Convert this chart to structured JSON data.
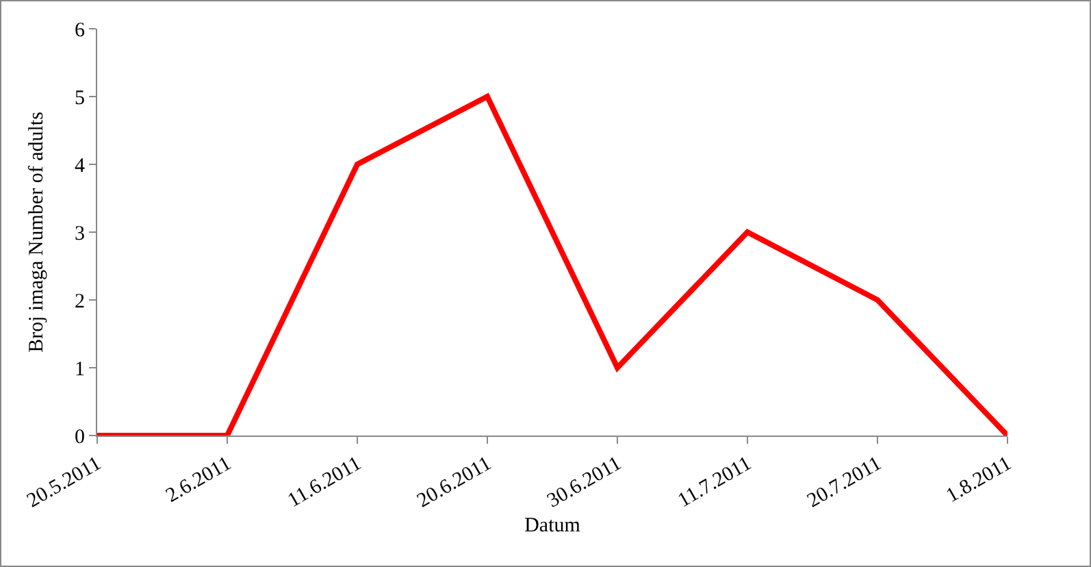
{
  "chart_data": {
    "type": "line",
    "xlabel": "Datum",
    "ylabel": "Broj imaga Number of adults",
    "categories": [
      "20.5.2011",
      "2.6.2011",
      "11.6.2011",
      "20.6.2011",
      "30.6.2011",
      "11.7.2011",
      "20.7.2011",
      "1.8.2011"
    ],
    "series": [
      {
        "color": "#ff0000",
        "values": [
          0,
          0,
          4,
          5,
          1,
          3,
          2,
          0
        ]
      }
    ],
    "ylim": [
      0,
      6
    ],
    "yticks": [
      0,
      1,
      2,
      3,
      4,
      5,
      6
    ],
    "grid": false,
    "legend": false,
    "marker": "none",
    "line_style": "solid"
  }
}
